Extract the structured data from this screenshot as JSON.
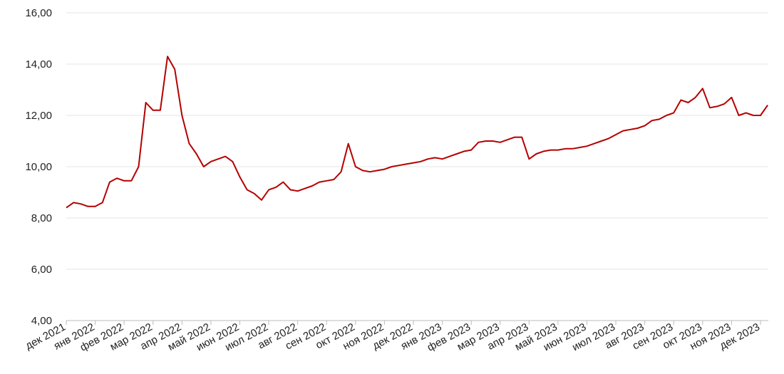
{
  "chart_data": {
    "type": "line",
    "categories": [
      "дек 2021",
      null,
      null,
      null,
      "янв 2022",
      null,
      null,
      null,
      "фев 2022",
      null,
      null,
      null,
      "мар 2022",
      null,
      null,
      null,
      "апр 2022",
      null,
      null,
      null,
      "май 2022",
      null,
      null,
      null,
      "июн 2022",
      null,
      null,
      null,
      "июл 2022",
      null,
      null,
      null,
      "авг 2022",
      null,
      null,
      null,
      "сен 2022",
      null,
      null,
      null,
      "окт 2022",
      null,
      null,
      null,
      "ноя 2022",
      null,
      null,
      null,
      "дек 2022",
      null,
      null,
      null,
      "янв 2023",
      null,
      null,
      null,
      "фев 2023",
      null,
      null,
      null,
      "мар 2023",
      null,
      null,
      null,
      "апр 2023",
      null,
      null,
      null,
      "май 2023",
      null,
      null,
      null,
      "июн 2023",
      null,
      null,
      null,
      "июл 2023",
      null,
      null,
      null,
      "авг 2023",
      null,
      null,
      null,
      "сен 2023",
      null,
      null,
      null,
      "окт 2023",
      null,
      null,
      null,
      "ноя 2023",
      null,
      null,
      null,
      "дек 2023",
      null
    ],
    "series": [
      {
        "color": "#b40000",
        "values": [
          8.4,
          8.6,
          8.55,
          8.45,
          8.45,
          8.6,
          9.4,
          9.55,
          9.45,
          9.45,
          10.0,
          12.5,
          12.2,
          12.2,
          14.3,
          13.8,
          12.0,
          10.9,
          10.5,
          10.0,
          10.2,
          10.3,
          10.4,
          10.2,
          9.6,
          9.1,
          8.95,
          8.7,
          9.1,
          9.2,
          9.4,
          9.1,
          9.05,
          9.15,
          9.25,
          9.4,
          9.45,
          9.5,
          9.8,
          10.9,
          10.0,
          9.85,
          9.8,
          9.85,
          9.9,
          10.0,
          10.05,
          10.1,
          10.15,
          10.2,
          10.3,
          10.35,
          10.3,
          10.4,
          10.5,
          10.6,
          10.65,
          10.95,
          11.0,
          11.0,
          10.95,
          11.05,
          11.15,
          11.15,
          10.3,
          10.5,
          10.6,
          10.65,
          10.65,
          10.7,
          10.7,
          10.75,
          10.8,
          10.9,
          11.0,
          11.1,
          11.25,
          11.4,
          11.45,
          11.5,
          11.6,
          11.8,
          11.85,
          12.0,
          12.1,
          12.6,
          12.5,
          12.7,
          13.05,
          12.3,
          12.35,
          12.45,
          12.7,
          12.0,
          12.1,
          12.0,
          12.0,
          12.4
        ]
      }
    ],
    "ylim": [
      4,
      16
    ],
    "yticks": [
      {
        "value": 4,
        "label": "4,00"
      },
      {
        "value": 6,
        "label": "6,00"
      },
      {
        "value": 8,
        "label": "8,00"
      },
      {
        "value": 10,
        "label": "10,00"
      },
      {
        "value": 12,
        "label": "12,00"
      },
      {
        "value": 14,
        "label": "14,00"
      },
      {
        "value": 16,
        "label": "16,00"
      }
    ],
    "grid": true
  }
}
